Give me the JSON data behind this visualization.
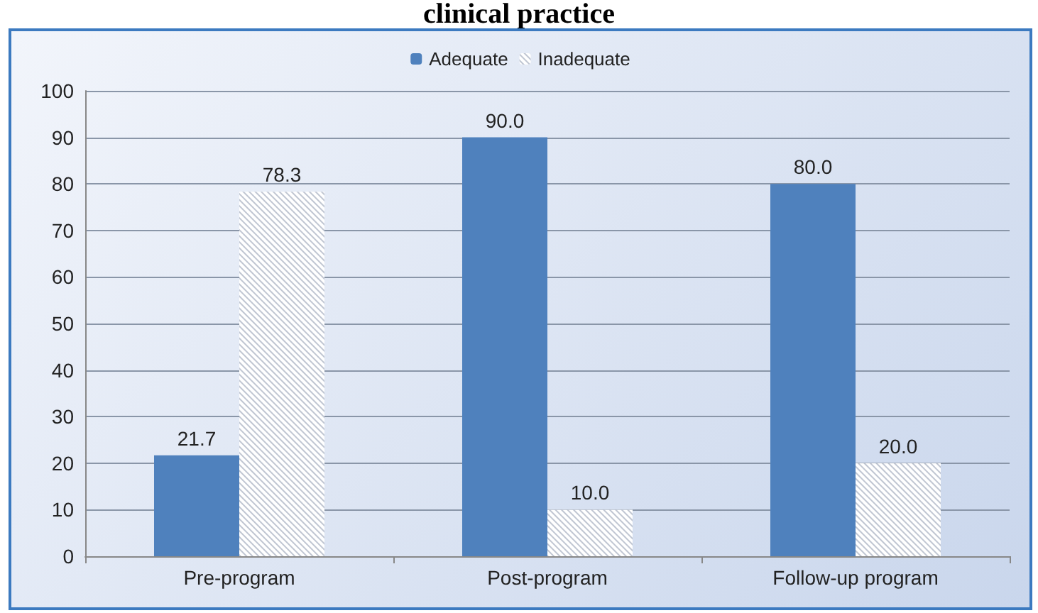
{
  "chart_data": {
    "type": "bar",
    "title": "clinical practice",
    "categories": [
      "Pre-program",
      "Post-program",
      "Follow-up program"
    ],
    "series": [
      {
        "name": "Adequate",
        "color": "#4f81bd",
        "values": [
          21.7,
          90.0,
          80.0
        ]
      },
      {
        "name": "Inadequate",
        "color": "#ffffff",
        "values": [
          78.3,
          10.0,
          20.0
        ]
      }
    ],
    "value_labels": [
      [
        "21.7",
        "90.0",
        "80.0"
      ],
      [
        "78.3",
        "10.0",
        "20.0"
      ]
    ],
    "ylim": [
      0,
      100
    ],
    "yticks": [
      0,
      10,
      20,
      30,
      40,
      50,
      60,
      70,
      80,
      90,
      100
    ],
    "grid": "y",
    "legend": "top"
  }
}
